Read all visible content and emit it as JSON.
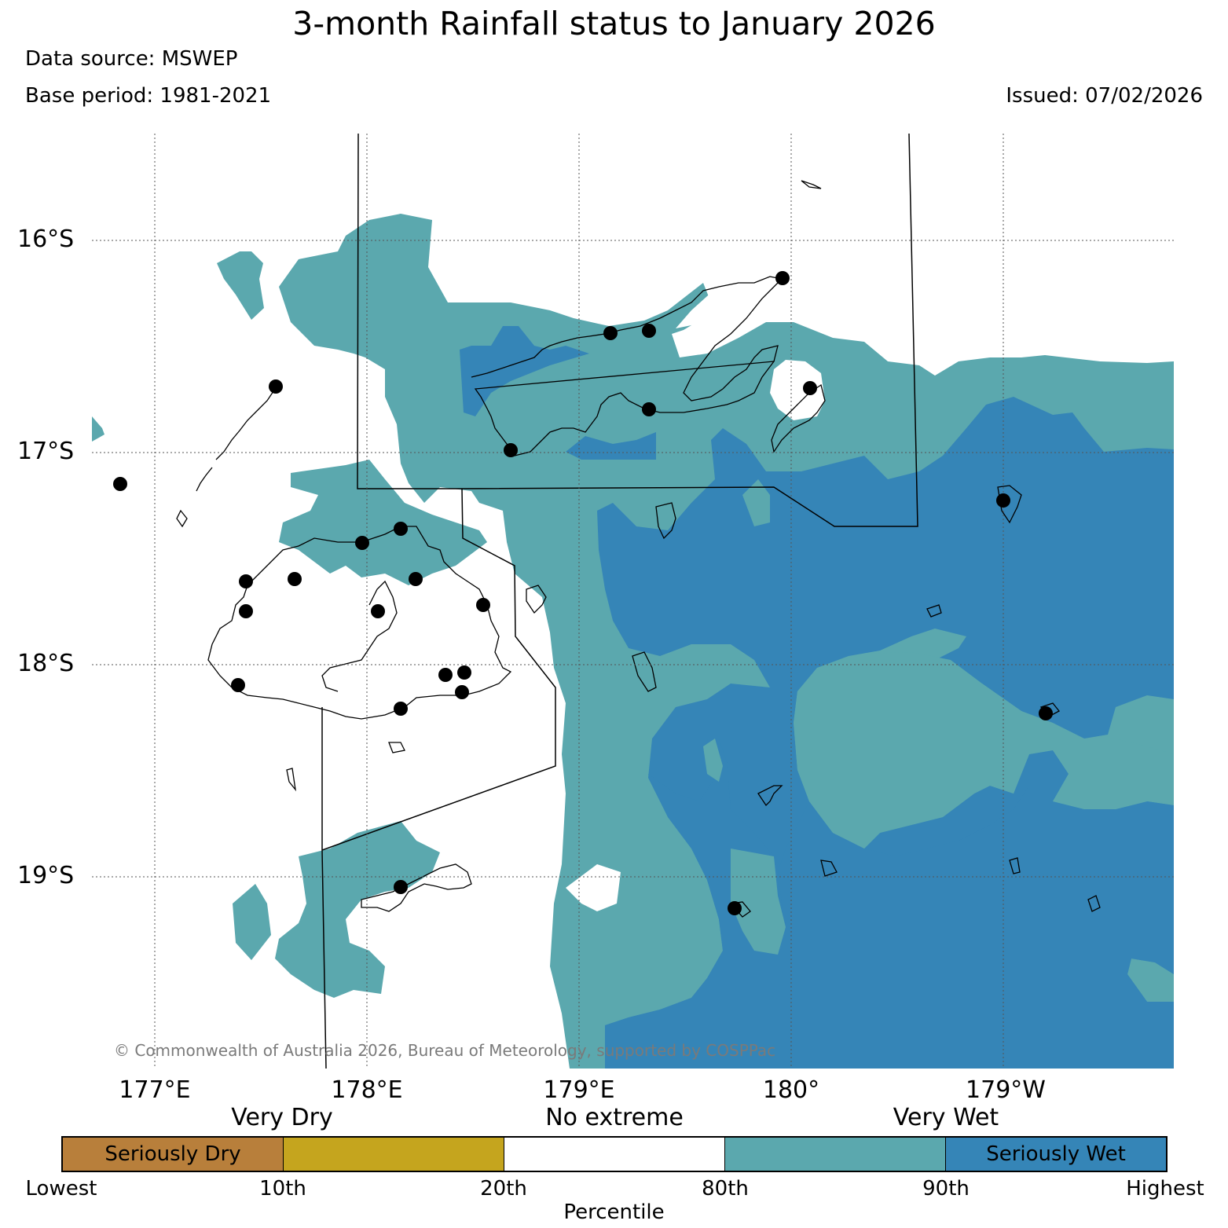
{
  "header": {
    "title": "3-month Rainfall status to January 2026",
    "data_source": "Data source: MSWEP",
    "base_period": "Base period: 1981-2021",
    "issued": "Issued: 07/02/2026"
  },
  "map": {
    "copyright": "© Commonwealth of Australia 2026, Bureau of Meteorology, supported by COSPPac",
    "lat_labels": [
      "16°S",
      "17°S",
      "18°S",
      "19°S"
    ],
    "lon_labels": [
      "177°E",
      "178°E",
      "179°E",
      "180°",
      "179°W"
    ],
    "colors": {
      "very_wet": "#5ba8ae",
      "seriously_wet": "#3585b7",
      "no_extreme": "#ffffff",
      "coastline": "#000000",
      "station": "#000000"
    }
  },
  "legend": {
    "group_labels": [
      "Very Dry",
      "No extreme",
      "Very Wet"
    ],
    "segments": [
      {
        "label": "Seriously Dry",
        "color": "#b87f3b"
      },
      {
        "label": "",
        "color": "#c5a51e"
      },
      {
        "label": "",
        "color": "#ffffff"
      },
      {
        "label": "",
        "color": "#5ba8ae"
      },
      {
        "label": "Seriously Wet",
        "color": "#3585b7"
      }
    ],
    "ticks": [
      "Lowest",
      "10th",
      "20th",
      "80th",
      "90th",
      "Highest"
    ],
    "axis_label": "Percentile"
  }
}
